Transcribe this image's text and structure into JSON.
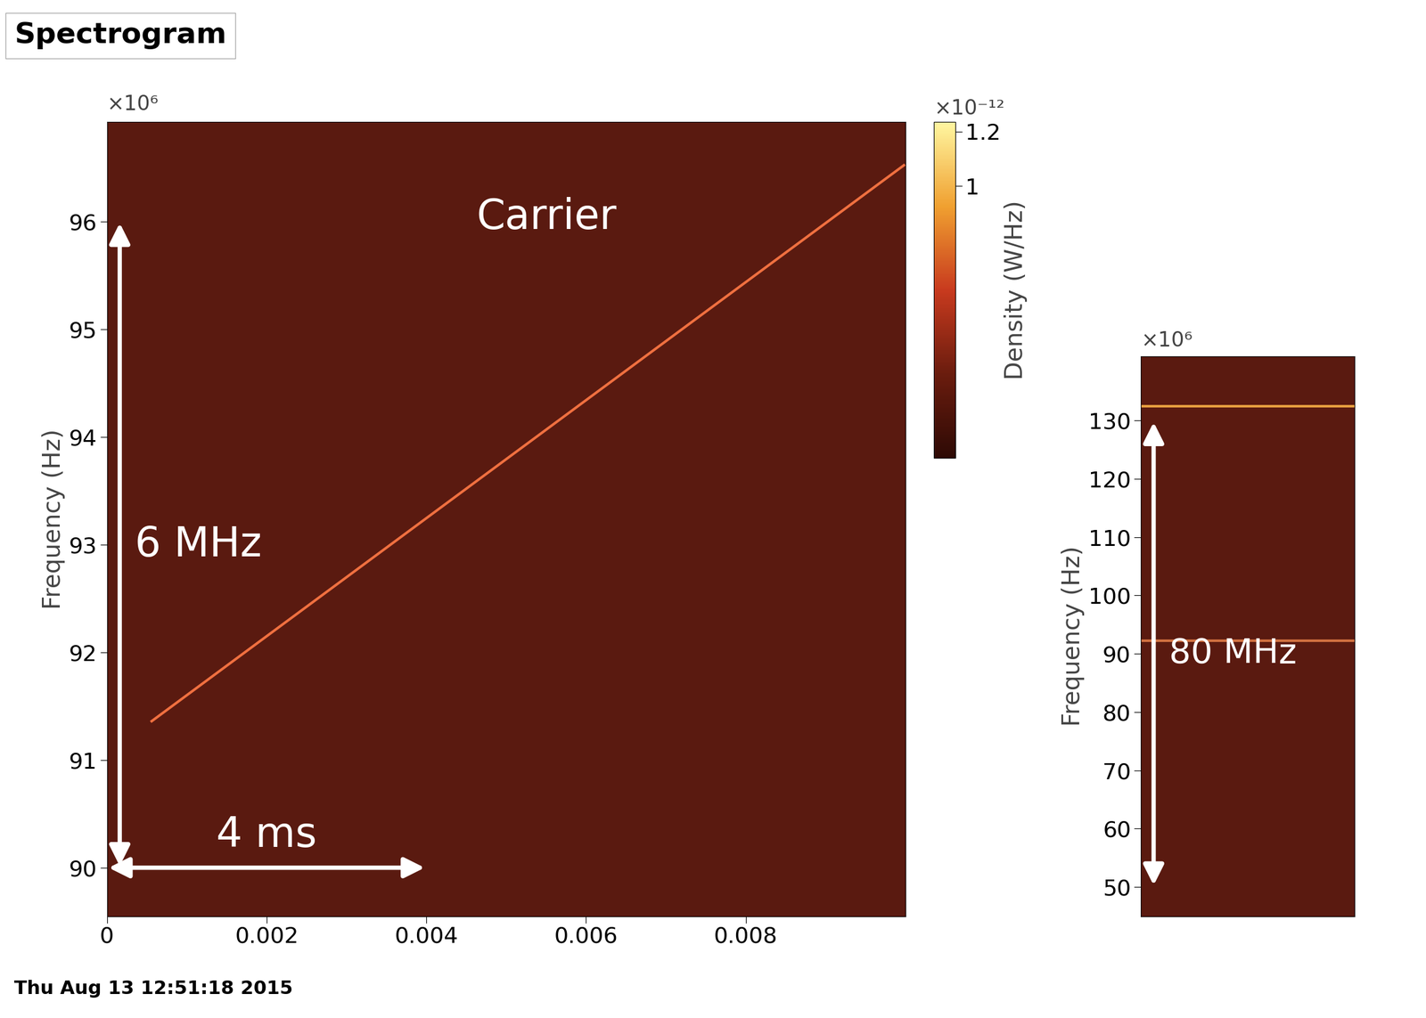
{
  "chart_data": [
    {
      "type": "line",
      "title": "Spectrogram",
      "ylabel": "Frequency (Hz)",
      "xlim": [
        0,
        0.01
      ],
      "ylim": [
        89550000,
        96920000
      ],
      "xticks": [
        0,
        0.002,
        0.004,
        0.006,
        0.008
      ],
      "yticks": [
        {
          "value": 90000000,
          "label": "90"
        },
        {
          "value": 91000000,
          "label": "91"
        },
        {
          "value": 92000000,
          "label": "92"
        },
        {
          "value": 93000000,
          "label": "93"
        },
        {
          "value": 94000000,
          "label": "94"
        },
        {
          "value": 95000000,
          "label": "95"
        },
        {
          "value": 96000000,
          "label": "96"
        }
      ],
      "grid": false,
      "series": [
        {
          "name": "Carrier",
          "color": "#f07040",
          "x": [
            0.00056,
            0.00998
          ],
          "values": [
            91360000,
            96520000
          ]
        }
      ],
      "annotations": [
        {
          "text": "6 MHz",
          "x": [
            0.00016,
            0.00016
          ],
          "y": [
            90000000,
            96000000
          ]
        },
        {
          "text": "4 ms",
          "x": [
            0,
            0.004
          ],
          "y": [
            90000000,
            90000000
          ]
        },
        {
          "text": "×10⁶"
        }
      ],
      "footnote": "Thu Aug 13 12:51:18 2015",
      "colorbar": {
        "label": "Density (W/Hz)",
        "range": [
          0,
          1.235e-12
        ],
        "multiplier": "×10⁻¹²",
        "ticks": [
          {
            "value": 1e-12,
            "label": "1"
          },
          {
            "value": 1.2e-12,
            "label": "1.2"
          }
        ]
      }
    },
    {
      "type": "line",
      "ylabel": "Frequency (Hz)",
      "tick_labels": "y",
      "xlim": [
        0,
        1
      ],
      "ylim": [
        45000000,
        141000000
      ],
      "yticks": [
        {
          "value": 50000000,
          "label": "50"
        },
        {
          "value": 60000000,
          "label": "60"
        },
        {
          "value": 70000000,
          "label": "70"
        },
        {
          "value": 80000000,
          "label": "80"
        },
        {
          "value": 90000000,
          "label": "90"
        },
        {
          "value": 100000000,
          "label": "100"
        },
        {
          "value": 110000000,
          "label": "110"
        },
        {
          "value": 120000000,
          "label": "120"
        },
        {
          "value": 130000000,
          "label": "130"
        }
      ],
      "grid": false,
      "series": [
        {
          "color": "#e8a040",
          "x": [
            0,
            1
          ],
          "values": [
            132400000,
            132400000
          ]
        },
        {
          "color": "#d07040",
          "x": [
            0,
            1
          ],
          "values": [
            92200000,
            92200000
          ]
        }
      ],
      "annotations": [
        {
          "text": "80 MHz",
          "x": [
            0.06,
            0.06
          ],
          "y": [
            50000000,
            130000000
          ]
        },
        {
          "text": "×10⁶"
        }
      ]
    }
  ]
}
